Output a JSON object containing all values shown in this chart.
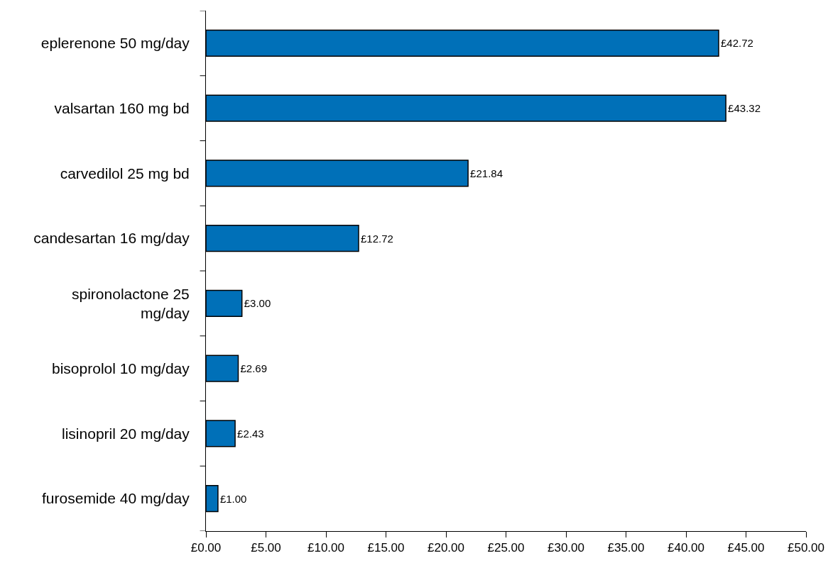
{
  "chart_data": {
    "type": "bar",
    "orientation": "horizontal",
    "categories": [
      "eplerenone 50 mg/day",
      "valsartan 160 mg bd",
      "carvedilol 25 mg bd",
      "candesartan 16 mg/day",
      "spironolactone 25 mg/day",
      "bisoprolol 10 mg/day",
      "lisinopril 20 mg/day",
      "furosemide 40 mg/day"
    ],
    "values": [
      42.72,
      43.32,
      21.84,
      12.72,
      3.0,
      2.69,
      2.43,
      1.0
    ],
    "value_labels": [
      "£42.72",
      "£43.32",
      "£21.84",
      "£12.72",
      "£3.00",
      "£2.69",
      "£2.43",
      "£1.00"
    ],
    "color": "#0070b8",
    "xlim": [
      0,
      50
    ],
    "xticks": [
      {
        "value": 0,
        "label": "£0.00"
      },
      {
        "value": 5,
        "label": "£5.00"
      },
      {
        "value": 10,
        "label": "£10.00"
      },
      {
        "value": 15,
        "label": "£15.00"
      },
      {
        "value": 20,
        "label": "£20.00"
      },
      {
        "value": 25,
        "label": "£25.00"
      },
      {
        "value": 30,
        "label": "£30.00"
      },
      {
        "value": 35,
        "label": "£35.00"
      },
      {
        "value": 40,
        "label": "£40.00"
      },
      {
        "value": 45,
        "label": "£45.00"
      },
      {
        "value": 50,
        "label": "£50.00"
      }
    ],
    "grid": false,
    "legend": false
  }
}
